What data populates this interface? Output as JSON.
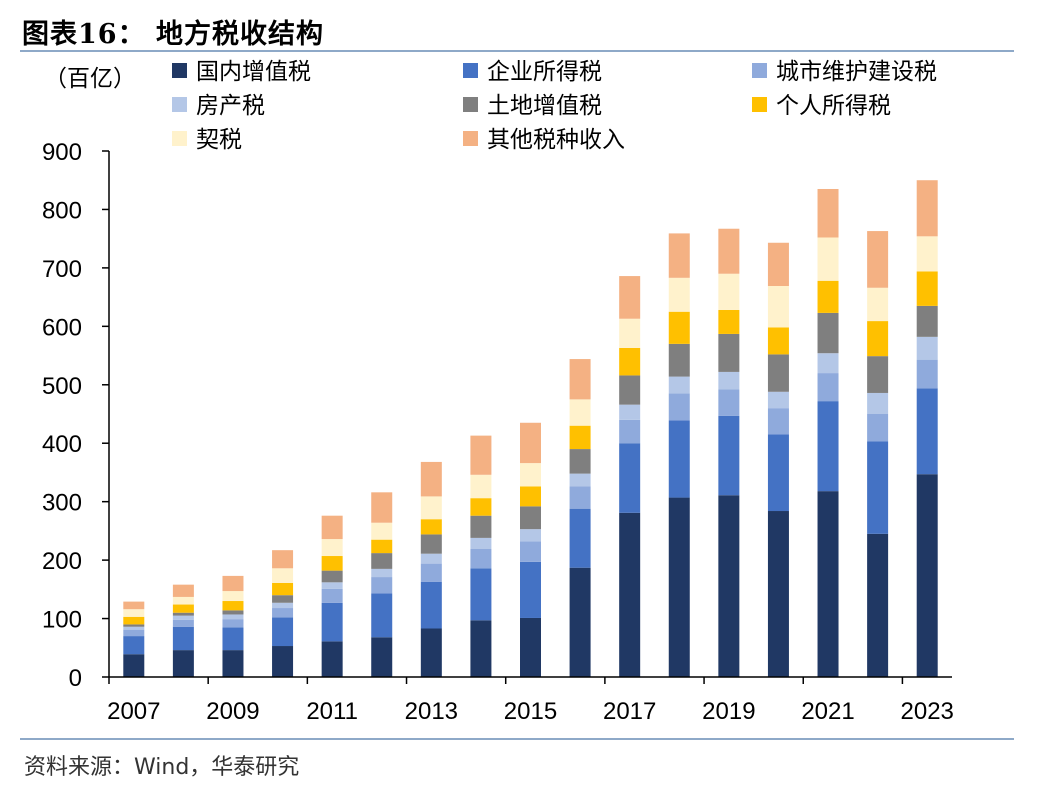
{
  "title": "图表16：  地方税收结构",
  "source": "资料来源：Wind，华泰研究",
  "chart_data": {
    "type": "bar",
    "stacked": true,
    "unit_label": "（百亿）",
    "ylim": [
      0,
      900
    ],
    "yticks": [
      0,
      100,
      200,
      300,
      400,
      500,
      600,
      700,
      800,
      900
    ],
    "xtick_labels": [
      "2007",
      "2009",
      "2011",
      "2013",
      "2015",
      "2017",
      "2019",
      "2021",
      "2023"
    ],
    "categories": [
      "2007",
      "2008",
      "2009",
      "2010",
      "2011",
      "2012",
      "2013",
      "2014",
      "2015",
      "2016",
      "2017",
      "2018",
      "2019",
      "2020",
      "2021",
      "2022",
      "2023"
    ],
    "series": [
      {
        "name": "国内增值税",
        "color": "#203864",
        "values": [
          39,
          46,
          46,
          53,
          61,
          68,
          83,
          97,
          101,
          187,
          281,
          307,
          311,
          284,
          318,
          245,
          347
        ]
      },
      {
        "name": "企业所得税",
        "color": "#4472c4",
        "values": [
          31,
          40,
          39,
          49,
          66,
          75,
          80,
          89,
          96,
          101,
          119,
          132,
          136,
          131,
          154,
          158,
          147
        ]
      },
      {
        "name": "城市维护建设税",
        "color": "#8faadc",
        "values": [
          11,
          12,
          14,
          16,
          24,
          28,
          31,
          33,
          35,
          38,
          40,
          46,
          45,
          45,
          48,
          47,
          49
        ]
      },
      {
        "name": "房产税",
        "color": "#b4c7e7",
        "values": [
          5,
          7,
          8,
          9,
          11,
          14,
          17,
          19,
          21,
          22,
          26,
          29,
          30,
          28,
          34,
          36,
          39
        ]
      },
      {
        "name": "土地增值税",
        "color": "#7f7f7f",
        "values": [
          4,
          5,
          7,
          13,
          20,
          27,
          33,
          38,
          39,
          42,
          50,
          56,
          65,
          64,
          69,
          63,
          53
        ]
      },
      {
        "name": "个人所得税",
        "color": "#ffc000",
        "values": [
          13,
          14,
          16,
          21,
          25,
          23,
          26,
          30,
          34,
          40,
          47,
          55,
          41,
          46,
          55,
          60,
          59
        ]
      },
      {
        "name": "契税",
        "color": "#fff2cc",
        "values": [
          13,
          13,
          17,
          25,
          29,
          29,
          39,
          40,
          40,
          45,
          50,
          58,
          62,
          71,
          74,
          57,
          60
        ]
      },
      {
        "name": "其他税种收入",
        "color": "#f4b183",
        "values": [
          13,
          21,
          26,
          31,
          40,
          52,
          59,
          67,
          69,
          69,
          73,
          76,
          77,
          74,
          83,
          97,
          96
        ]
      }
    ]
  }
}
